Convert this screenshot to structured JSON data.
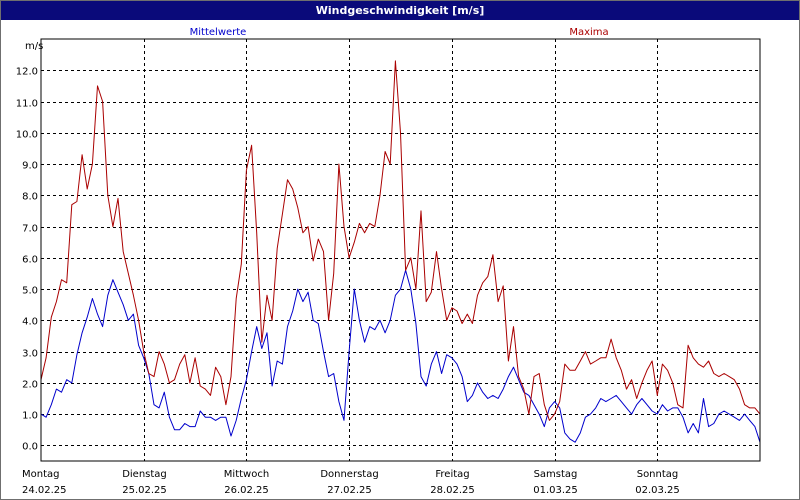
{
  "chart_data": {
    "type": "line",
    "title": "Windgeschwindigkeit [m/s]",
    "ylabel": "m/s",
    "ylim": [
      -0.5,
      13.0
    ],
    "yticks": [
      "0.0",
      "1.0",
      "2.0",
      "3.0",
      "4.0",
      "5.0",
      "6.0",
      "7.0",
      "8.0",
      "9.0",
      "10.0",
      "11.0",
      "12.0"
    ],
    "grid": true,
    "x_unit": "days since 24.02.25 00:00",
    "xlim": [
      0,
      7
    ],
    "days": [
      {
        "weekday": "Montag",
        "date": "24.02.25"
      },
      {
        "weekday": "Dienstag",
        "date": "25.02.25"
      },
      {
        "weekday": "Mittwoch",
        "date": "26.02.25"
      },
      {
        "weekday": "Donnerstag",
        "date": "27.02.25"
      },
      {
        "weekday": "Freitag",
        "date": "28.02.25"
      },
      {
        "weekday": "Samstag",
        "date": "01.03.25"
      },
      {
        "weekday": "Sonntag",
        "date": "02.03.25"
      }
    ],
    "series": [
      {
        "name": "Mittelwerte",
        "color": "#0000cc",
        "x": [
          0,
          0.05,
          0.1,
          0.15,
          0.2,
          0.25,
          0.3,
          0.35,
          0.4,
          0.45,
          0.5,
          0.55,
          0.6,
          0.65,
          0.7,
          0.75,
          0.8,
          0.85,
          0.9,
          0.95,
          1.0,
          1.05,
          1.1,
          1.15,
          1.2,
          1.25,
          1.3,
          1.35,
          1.4,
          1.45,
          1.5,
          1.55,
          1.6,
          1.65,
          1.7,
          1.75,
          1.8,
          1.85,
          1.9,
          1.95,
          2.0,
          2.05,
          2.1,
          2.15,
          2.2,
          2.25,
          2.3,
          2.35,
          2.4,
          2.45,
          2.5,
          2.55,
          2.6,
          2.65,
          2.7,
          2.75,
          2.8,
          2.85,
          2.9,
          2.95,
          3.0,
          3.05,
          3.1,
          3.15,
          3.2,
          3.25,
          3.3,
          3.35,
          3.4,
          3.45,
          3.5,
          3.55,
          3.6,
          3.65,
          3.7,
          3.75,
          3.8,
          3.85,
          3.9,
          3.95,
          4.0,
          4.05,
          4.1,
          4.15,
          4.2,
          4.25,
          4.3,
          4.35,
          4.4,
          4.45,
          4.5,
          4.55,
          4.6,
          4.65,
          4.7,
          4.75,
          4.8,
          4.85,
          4.9,
          4.95,
          5.0,
          5.05,
          5.1,
          5.15,
          5.2,
          5.25,
          5.3,
          5.35,
          5.4,
          5.45,
          5.5,
          5.55,
          5.6,
          5.65,
          5.7,
          5.75,
          5.8,
          5.85,
          5.9,
          5.95,
          6.0,
          6.05,
          6.1,
          6.15,
          6.2,
          6.25,
          6.3,
          6.35,
          6.4,
          6.45,
          6.5,
          6.55,
          6.6,
          6.65,
          6.7,
          6.75,
          6.8,
          6.85,
          6.9,
          6.95,
          7.0
        ],
        "values": [
          1.0,
          0.9,
          1.3,
          1.8,
          1.7,
          2.1,
          2.0,
          2.9,
          3.6,
          4.1,
          4.7,
          4.2,
          3.8,
          4.8,
          5.3,
          4.9,
          4.5,
          4.0,
          4.2,
          3.2,
          2.8,
          2.3,
          1.3,
          1.2,
          1.7,
          0.9,
          0.5,
          0.5,
          0.7,
          0.6,
          0.6,
          1.1,
          0.9,
          0.9,
          0.8,
          0.9,
          0.9,
          0.3,
          0.8,
          1.5,
          2.1,
          3.0,
          3.8,
          3.1,
          3.6,
          1.9,
          2.7,
          2.6,
          3.8,
          4.3,
          5.0,
          4.6,
          4.9,
          4.0,
          3.9,
          3.0,
          2.2,
          2.3,
          1.4,
          0.8,
          3.0,
          5.0,
          4.0,
          3.3,
          3.8,
          3.7,
          4.0,
          3.6,
          4.0,
          4.8,
          5.0,
          5.6,
          5.0,
          3.9,
          2.2,
          1.9,
          2.6,
          3.0,
          2.3,
          2.9,
          2.8,
          2.6,
          2.2,
          1.4,
          1.6,
          2.0,
          1.7,
          1.5,
          1.6,
          1.5,
          1.8,
          2.2,
          2.5,
          2.1,
          1.7,
          1.6,
          1.3,
          1.0,
          0.6,
          1.2,
          1.4,
          1.2,
          0.4,
          0.2,
          0.1,
          0.4,
          0.9,
          1.0,
          1.2,
          1.5,
          1.4,
          1.5,
          1.6,
          1.4,
          1.2,
          1.0,
          1.3,
          1.5,
          1.3,
          1.1,
          1.0,
          1.3,
          1.1,
          1.2,
          1.2,
          0.9,
          0.4,
          0.7,
          0.4,
          1.5,
          0.6,
          0.7,
          1.0,
          1.1,
          1.0,
          0.9,
          0.8,
          1.0,
          0.8,
          0.6,
          0.1
        ]
      },
      {
        "name": "Maxima",
        "color": "#aa0000",
        "x": [
          0,
          0.05,
          0.1,
          0.15,
          0.2,
          0.25,
          0.3,
          0.35,
          0.4,
          0.45,
          0.5,
          0.55,
          0.6,
          0.65,
          0.7,
          0.75,
          0.8,
          0.85,
          0.9,
          0.95,
          1.0,
          1.05,
          1.1,
          1.15,
          1.2,
          1.25,
          1.3,
          1.35,
          1.4,
          1.45,
          1.5,
          1.55,
          1.6,
          1.65,
          1.7,
          1.75,
          1.8,
          1.85,
          1.9,
          1.95,
          2.0,
          2.05,
          2.1,
          2.15,
          2.2,
          2.25,
          2.3,
          2.35,
          2.4,
          2.45,
          2.5,
          2.55,
          2.6,
          2.65,
          2.7,
          2.75,
          2.8,
          2.85,
          2.9,
          2.95,
          3.0,
          3.05,
          3.1,
          3.15,
          3.2,
          3.25,
          3.3,
          3.35,
          3.4,
          3.45,
          3.5,
          3.55,
          3.6,
          3.65,
          3.7,
          3.75,
          3.8,
          3.85,
          3.9,
          3.95,
          4.0,
          4.05,
          4.1,
          4.15,
          4.2,
          4.25,
          4.3,
          4.35,
          4.4,
          4.45,
          4.5,
          4.55,
          4.6,
          4.65,
          4.7,
          4.75,
          4.8,
          4.85,
          4.9,
          4.95,
          5.0,
          5.05,
          5.1,
          5.15,
          5.2,
          5.25,
          5.3,
          5.35,
          5.4,
          5.45,
          5.5,
          5.55,
          5.6,
          5.65,
          5.7,
          5.75,
          5.8,
          5.85,
          5.9,
          5.95,
          6.0,
          6.05,
          6.1,
          6.15,
          6.2,
          6.25,
          6.3,
          6.35,
          6.4,
          6.45,
          6.5,
          6.55,
          6.6,
          6.65,
          6.7,
          6.75,
          6.8,
          6.85,
          6.9,
          6.95,
          7.0
        ],
        "values": [
          2.1,
          2.8,
          4.1,
          4.6,
          5.3,
          5.2,
          7.7,
          7.8,
          9.3,
          8.2,
          9.0,
          11.5,
          11.0,
          8.0,
          7.0,
          7.9,
          6.2,
          5.5,
          4.8,
          4.0,
          3.0,
          2.3,
          2.2,
          3.0,
          2.6,
          2.0,
          2.1,
          2.6,
          2.9,
          2.0,
          2.8,
          1.9,
          1.8,
          1.6,
          2.5,
          2.2,
          1.3,
          2.2,
          4.7,
          5.8,
          8.8,
          9.6,
          6.8,
          3.3,
          4.8,
          4.0,
          6.3,
          7.4,
          8.5,
          8.2,
          7.6,
          6.8,
          7.0,
          5.9,
          6.6,
          6.2,
          4.0,
          5.5,
          9.0,
          7.0,
          6.0,
          6.5,
          7.1,
          6.8,
          7.1,
          7.0,
          8.0,
          9.4,
          9.0,
          12.3,
          10.0,
          5.6,
          6.0,
          5.0,
          7.5,
          4.6,
          4.9,
          6.2,
          5.0,
          4.0,
          4.4,
          4.3,
          3.9,
          4.2,
          3.9,
          4.8,
          5.2,
          5.4,
          6.1,
          4.6,
          5.1,
          2.7,
          3.8,
          2.2,
          1.8,
          1.0,
          2.2,
          2.3,
          1.3,
          0.8,
          1.0,
          1.4,
          2.6,
          2.4,
          2.4,
          2.7,
          3.0,
          2.6,
          2.7,
          2.8,
          2.8,
          3.4,
          2.8,
          2.4,
          1.8,
          2.1,
          1.5,
          2.0,
          2.4,
          2.7,
          1.6,
          2.6,
          2.4,
          2.0,
          1.3,
          1.2,
          3.2,
          2.8,
          2.6,
          2.5,
          2.7,
          2.3,
          2.2,
          2.3,
          2.2,
          2.1,
          1.8,
          1.3,
          1.2,
          1.2,
          1.0
        ]
      }
    ]
  }
}
